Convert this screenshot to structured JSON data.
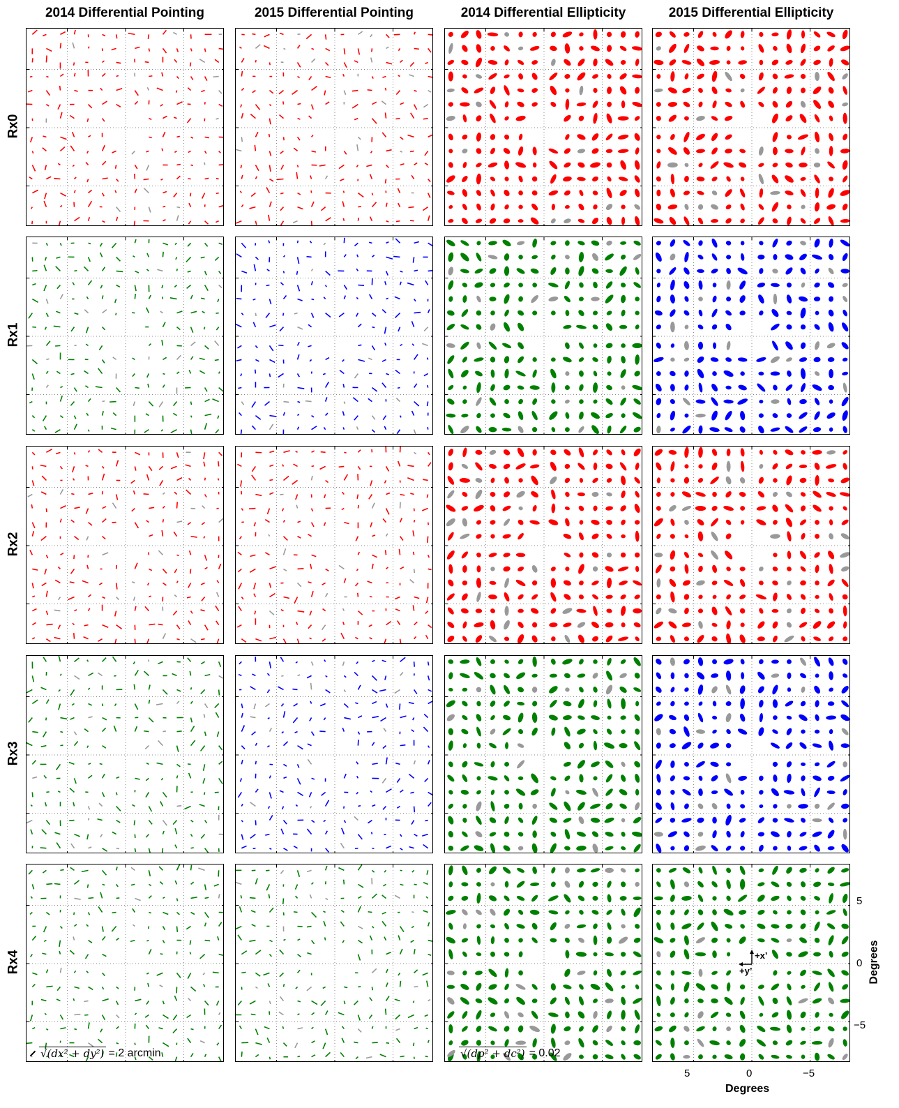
{
  "columns": [
    {
      "title": "2014 Differential Pointing",
      "kind": "pointing"
    },
    {
      "title": "2015 Differential Pointing",
      "kind": "pointing"
    },
    {
      "title": "2014 Differential Ellipticity",
      "kind": "ellipticity"
    },
    {
      "title": "2015 Differential Ellipticity",
      "kind": "ellipticity"
    }
  ],
  "rows": [
    {
      "label": "Rx0",
      "colors": [
        "#ff0000",
        "#ff0000",
        "#ff0000",
        "#ff0000"
      ]
    },
    {
      "label": "Rx1",
      "colors": [
        "#008000",
        "#0000ff",
        "#008000",
        "#0000ff"
      ]
    },
    {
      "label": "Rx2",
      "colors": [
        "#ff0000",
        "#ff0000",
        "#ff0000",
        "#ff0000"
      ]
    },
    {
      "label": "Rx3",
      "colors": [
        "#008000",
        "#0000ff",
        "#008000",
        "#0000ff"
      ]
    },
    {
      "label": "Rx4",
      "colors": [
        "#008000",
        "#008000",
        "#008000",
        "#008000"
      ]
    }
  ],
  "flag_color": "#999999",
  "legends": {
    "pointing": {
      "expr": "√(dx² + dy²)",
      "value": "= 2 arcmin"
    },
    "ellipticity": {
      "expr": "√(dp² + dc²)",
      "value": "= 0.02"
    }
  },
  "orientation": {
    "x": "+x’",
    "y": "+y’"
  },
  "chart_data": {
    "type": "scatter",
    "xlabel": "Degrees",
    "ylabel": "Degrees",
    "xticks": [
      "5",
      "0",
      "−5"
    ],
    "yticks": [
      "5",
      "0",
      "−5"
    ],
    "xlim": [
      8.5,
      -8.5
    ],
    "ylim": [
      -8.5,
      8.5
    ],
    "grid": true,
    "tile_centers": [
      [
        5,
        5
      ],
      [
        -5,
        5
      ],
      [
        5,
        -5
      ],
      [
        -5,
        -5
      ]
    ],
    "tile_grid": "8x8 detector pairs per tile",
    "pointing_legend_value": 2,
    "ellipticity_legend_value": 0.02
  }
}
